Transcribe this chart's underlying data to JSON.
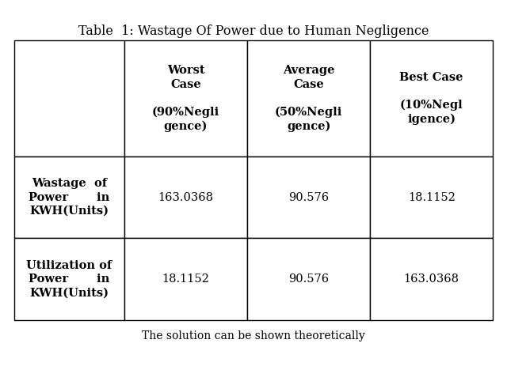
{
  "title": "Table  1: Wastage Of Power due to Human Negligence",
  "col_headers": [
    "",
    "Worst\nCase\n\n(90%Negli\ngence)",
    "Average\nCase\n\n(50%Negli\ngence)",
    "Best Case\n\n(10%Negl\nigence)"
  ],
  "row_labels": [
    "Wastage  of\nPower       in\nKWH(Units)",
    "Utilization of\nPower       in\nKWH(Units)"
  ],
  "data": [
    [
      "163.0368",
      "90.576",
      "18.1152"
    ],
    [
      "18.1152",
      "90.576",
      "163.0368"
    ]
  ],
  "background_color": "#ffffff",
  "text_color": "#000000",
  "title_fontsize": 11.5,
  "header_fontsize": 10.5,
  "cell_fontsize": 10.5,
  "footer_text": "The solution can be shown theoretically"
}
